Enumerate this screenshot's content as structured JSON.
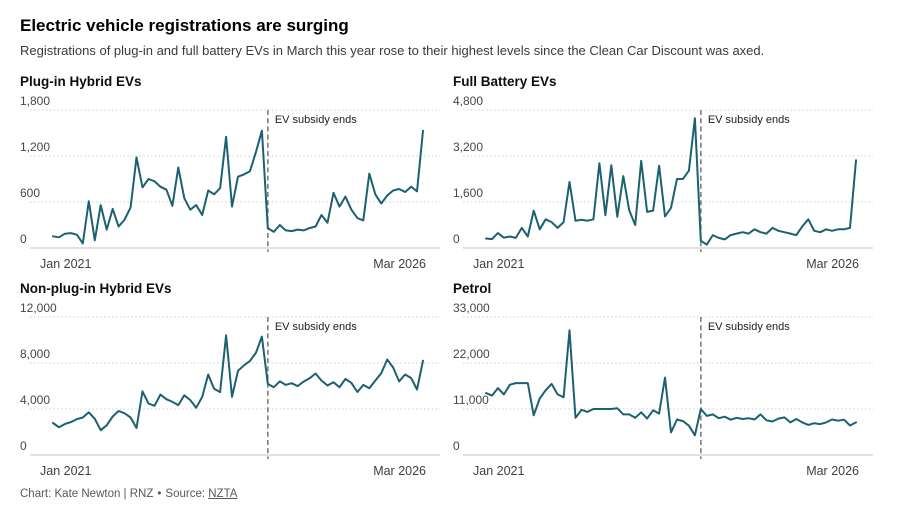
{
  "header": {
    "title": "Electric vehicle registrations are surging",
    "subtitle": "Registrations of plug-in and full battery EVs in March this year rose to their highest levels since the Clean Car Discount was axed."
  },
  "footer": {
    "credit": "Chart: Kate Newton | RNZ",
    "separator": "•",
    "source_label": "Source:",
    "source_link": "NZTA"
  },
  "colors": {
    "line": "#1b6172",
    "grid": "#cdcdcd",
    "axis": "#c3c3c3",
    "event_line": "#7d7d7d",
    "tick_text": "#474747",
    "annotation_text": "#1c1c1c"
  },
  "chart_data": [
    {
      "type": "line",
      "title": "Plug-in Hybrid EVs",
      "x_start": "Jan 2021",
      "x_end": "Mar 2026",
      "x_unit": "month",
      "ylim": [
        0,
        1800
      ],
      "yticks": [
        0,
        600,
        1200,
        1800
      ],
      "ytick_labels": [
        "0",
        "600",
        "1,200",
        "1,800"
      ],
      "grid": "horizontal-dotted",
      "legend": "none",
      "annotation": {
        "label": "EV subsidy ends",
        "x_index": 36
      },
      "values": [
        152,
        140,
        186,
        195,
        173,
        60,
        610,
        100,
        560,
        240,
        510,
        280,
        370,
        530,
        1180,
        790,
        900,
        870,
        800,
        760,
        550,
        1050,
        650,
        500,
        560,
        430,
        750,
        700,
        780,
        1450,
        540,
        930,
        960,
        1000,
        1250,
        1530,
        260,
        210,
        300,
        230,
        220,
        240,
        230,
        260,
        280,
        430,
        330,
        720,
        540,
        670,
        500,
        390,
        360,
        970,
        700,
        580,
        685,
        750,
        770,
        730,
        800,
        740,
        1530
      ]
    },
    {
      "type": "line",
      "title": "Full Battery EVs",
      "x_start": "Jan 2021",
      "x_end": "Mar 2026",
      "x_unit": "month",
      "ylim": [
        0,
        4800
      ],
      "yticks": [
        0,
        1600,
        3200,
        4800
      ],
      "ytick_labels": [
        "0",
        "1,600",
        "3,200",
        "4,800"
      ],
      "grid": "horizontal-dotted",
      "legend": "none",
      "annotation": {
        "label": "EV subsidy ends",
        "x_index": 36
      },
      "values": [
        330,
        310,
        520,
        360,
        400,
        350,
        700,
        400,
        1300,
        650,
        1000,
        900,
        700,
        900,
        2300,
        950,
        980,
        950,
        1000,
        2950,
        1140,
        2880,
        1085,
        2500,
        1310,
        800,
        3030,
        1257,
        1300,
        2860,
        1100,
        1400,
        2400,
        2400,
        2690,
        4515,
        250,
        120,
        450,
        350,
        300,
        450,
        500,
        550,
        500,
        650,
        550,
        500,
        700,
        600,
        550,
        500,
        450,
        750,
        1000,
        600,
        550,
        650,
        600,
        650,
        650,
        700,
        3050
      ]
    },
    {
      "type": "line",
      "title": "Non-plug-in Hybrid EVs",
      "x_start": "Jan 2021",
      "x_end": "Mar 2026",
      "x_unit": "month",
      "ylim": [
        0,
        12000
      ],
      "yticks": [
        0,
        4000,
        8000,
        12000
      ],
      "ytick_labels": [
        "0",
        "4,000",
        "8,000",
        "12,000"
      ],
      "grid": "horizontal-dotted",
      "legend": "none",
      "annotation": {
        "label": "EV subsidy ends",
        "x_index": 36
      },
      "values": [
        2780,
        2410,
        2695,
        2865,
        3120,
        3260,
        3716,
        3150,
        2155,
        2580,
        3350,
        3830,
        3630,
        3260,
        2350,
        5530,
        4480,
        4280,
        5250,
        4850,
        4620,
        4340,
        5190,
        4770,
        4110,
        5050,
        7000,
        5760,
        5470,
        10400,
        5050,
        7320,
        7800,
        8170,
        8880,
        10300,
        6180,
        5900,
        6400,
        6100,
        6240,
        5990,
        6380,
        6670,
        7090,
        6470,
        6040,
        6320,
        5900,
        6610,
        6270,
        5480,
        6100,
        5810,
        6470,
        7100,
        8300,
        7600,
        6400,
        7000,
        6700,
        5700,
        8200
      ]
    },
    {
      "type": "line",
      "title": "Petrol",
      "x_start": "Jan 2021",
      "x_end": "Mar 2026",
      "x_unit": "month",
      "ylim": [
        0,
        33000
      ],
      "yticks": [
        0,
        11000,
        22000,
        33000
      ],
      "ytick_labels": [
        "0",
        "11,000",
        "22,000",
        "33,000"
      ],
      "grid": "horizontal-dotted",
      "legend": "none",
      "annotation": {
        "label": "EV subsidy ends",
        "x_index": 36
      },
      "values": [
        14800,
        14200,
        16000,
        14500,
        16800,
        17200,
        17200,
        17200,
        9500,
        13500,
        15500,
        17000,
        14500,
        13800,
        29800,
        8900,
        10800,
        10300,
        11000,
        11000,
        11000,
        11000,
        11200,
        9700,
        9700,
        8900,
        10200,
        8700,
        10700,
        9900,
        18500,
        5400,
        8500,
        8100,
        7000,
        4700,
        11000,
        9360,
        9700,
        8800,
        9150,
        8450,
        8900,
        8600,
        8800,
        8500,
        9700,
        8300,
        8000,
        8700,
        9000,
        7800,
        8600,
        7800,
        7200,
        7600,
        7400,
        7800,
        8500,
        8200,
        8450,
        7050,
        7800
      ]
    }
  ]
}
